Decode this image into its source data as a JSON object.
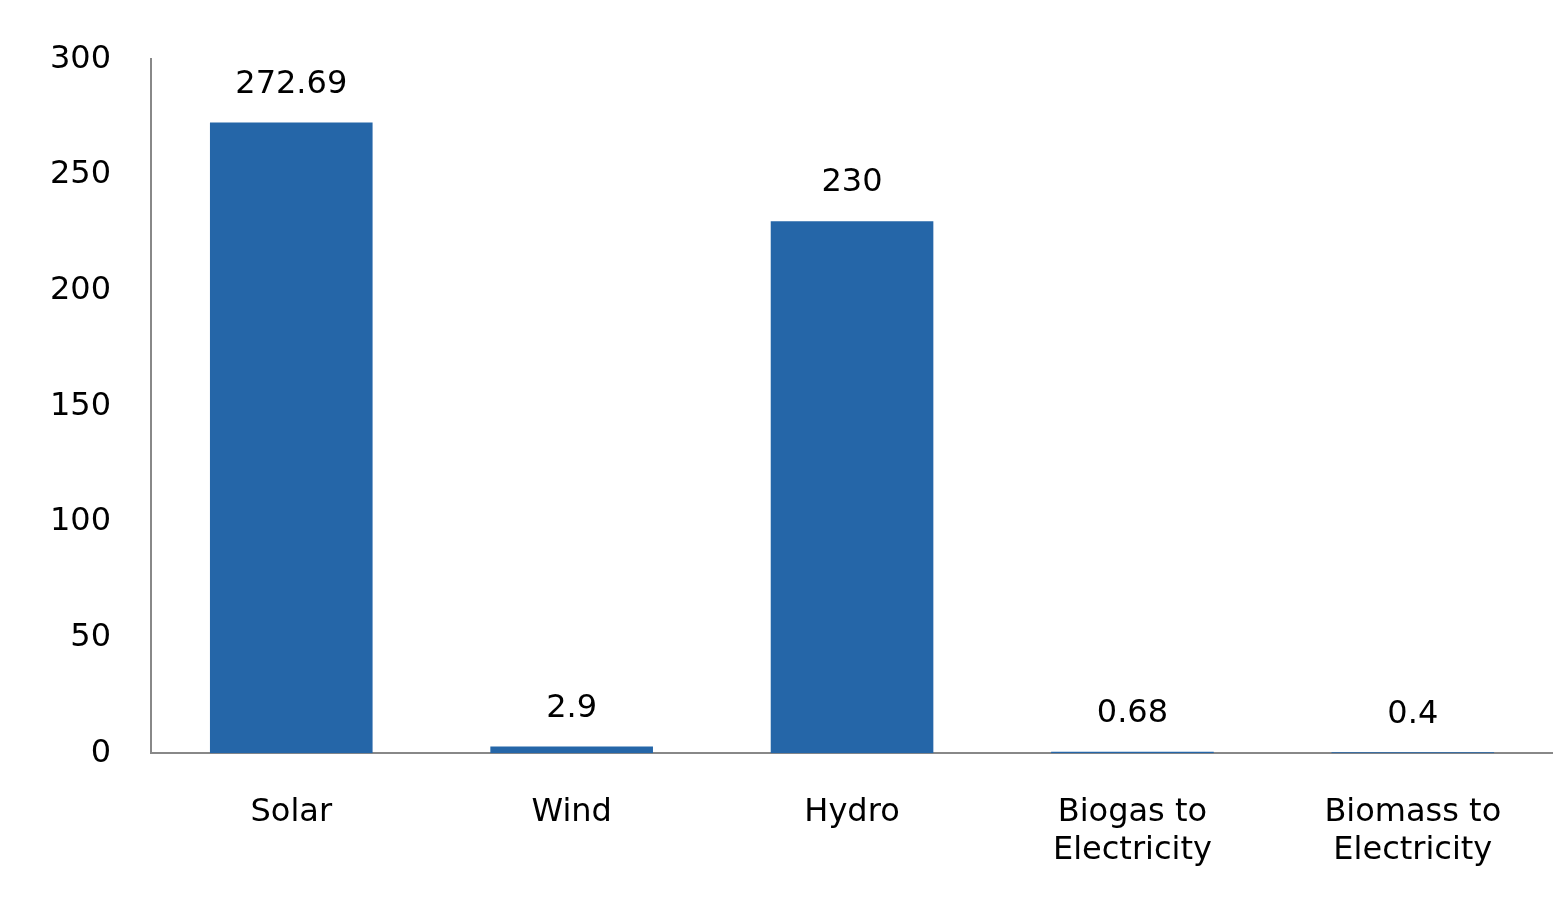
{
  "chart_data": {
    "type": "bar",
    "categories": [
      "Solar",
      "Wind",
      "Hydro",
      "Biogas to Electricity",
      "Biomass to Electricity"
    ],
    "values": [
      272.69,
      2.9,
      230,
      0.68,
      0.4
    ],
    "color": "#2566a8",
    "ylim": [
      0,
      300
    ],
    "yticks": [
      0,
      50,
      100,
      150,
      200,
      250,
      300
    ],
    "grid": false,
    "legend": false,
    "data_labels": true
  }
}
